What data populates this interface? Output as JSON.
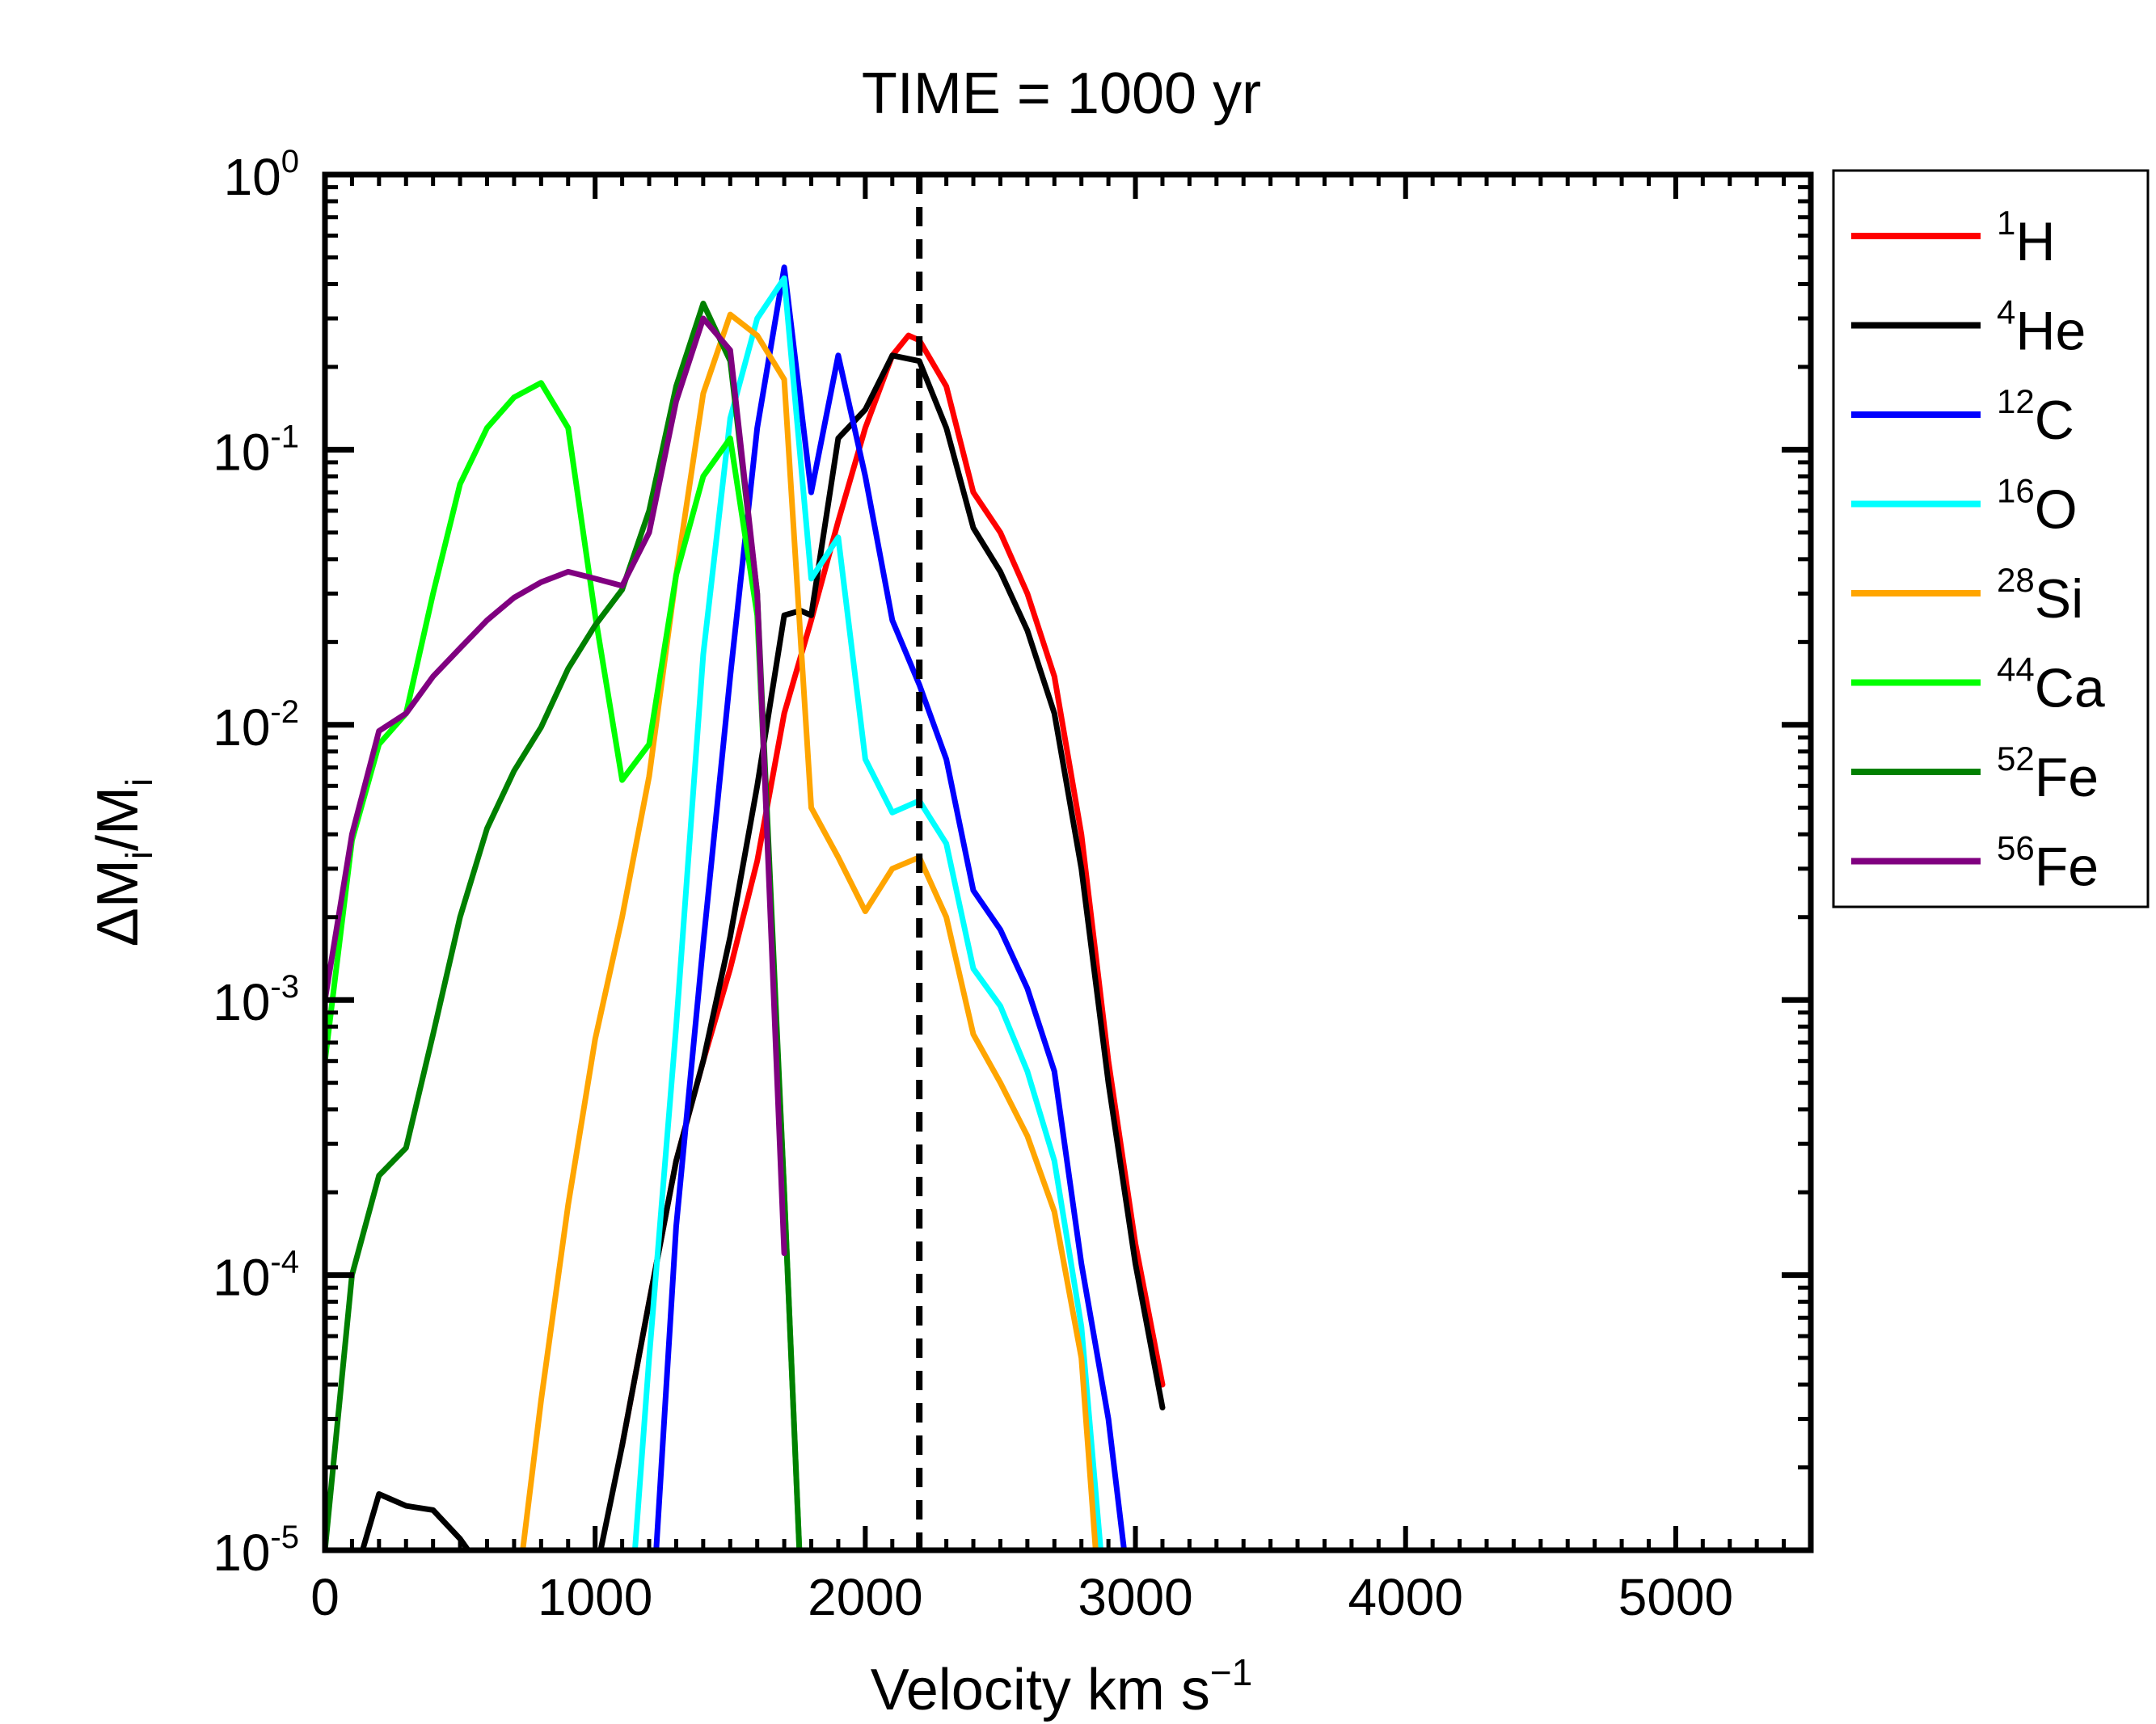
{
  "chart_data": {
    "type": "line",
    "title": "TIME = 1000 yr",
    "xlabel": "Velocity km s",
    "xlabel_exponent": "−1",
    "ylabel": "ΔM",
    "ylabel_sub": "i",
    "ylabel_sep": "/M",
    "ylabel_sub2": "i",
    "xlim": [
      0,
      5500
    ],
    "ylim_log10": [
      -5,
      0
    ],
    "x_ticks": [
      {
        "value": 0,
        "label": "0"
      },
      {
        "value": 1000,
        "label": "1000"
      },
      {
        "value": 2000,
        "label": "2000"
      },
      {
        "value": 3000,
        "label": "3000"
      },
      {
        "value": 4000,
        "label": "4000"
      },
      {
        "value": 5000,
        "label": "5000"
      }
    ],
    "y_ticks": [
      {
        "exp": 0,
        "base": "10",
        "sup": "0"
      },
      {
        "exp": -1,
        "base": "10",
        "sup": "-1"
      },
      {
        "exp": -2,
        "base": "10",
        "sup": "-2"
      },
      {
        "exp": -3,
        "base": "10",
        "sup": "-3"
      },
      {
        "exp": -4,
        "base": "10",
        "sup": "-4"
      },
      {
        "exp": -5,
        "base": "10",
        "sup": "-5"
      }
    ],
    "reference_line": {
      "x": 2200,
      "style": "dashed",
      "color": "#000000"
    },
    "legend_position": "right",
    "series": [
      {
        "name": "H",
        "mass_number": "1",
        "color": "#ff0000",
        "points": [
          [
            1100,
            2.4e-05
          ],
          [
            1200,
            8e-05
          ],
          [
            1300,
            0.00026
          ],
          [
            1400,
            0.0006
          ],
          [
            1500,
            0.0013
          ],
          [
            1600,
            0.0032
          ],
          [
            1700,
            0.011
          ],
          [
            1800,
            0.024
          ],
          [
            1900,
            0.055
          ],
          [
            2000,
            0.12
          ],
          [
            2100,
            0.22
          ],
          [
            2160,
            0.26
          ],
          [
            2200,
            0.25
          ],
          [
            2300,
            0.17
          ],
          [
            2400,
            0.07
          ],
          [
            2500,
            0.05
          ],
          [
            2600,
            0.03
          ],
          [
            2700,
            0.015
          ],
          [
            2800,
            0.004
          ],
          [
            2900,
            0.0006
          ],
          [
            3000,
            0.00013
          ],
          [
            3100,
            4e-05
          ]
        ]
      },
      {
        "name": "He",
        "mass_number": "4",
        "color": "#000000",
        "points": [
          [
            110,
            8e-06
          ],
          [
            200,
            1.6e-05
          ],
          [
            300,
            1.45e-05
          ],
          [
            400,
            1.4e-05
          ],
          [
            500,
            1.1e-05
          ],
          [
            600,
            8e-06
          ],
          [
            1000,
            8e-06
          ],
          [
            1100,
            2.4e-05
          ],
          [
            1200,
            8e-05
          ],
          [
            1300,
            0.00026
          ],
          [
            1400,
            0.0006
          ],
          [
            1500,
            0.0017
          ],
          [
            1600,
            0.006
          ],
          [
            1700,
            0.025
          ],
          [
            1760,
            0.026
          ],
          [
            1800,
            0.025
          ],
          [
            1900,
            0.11
          ],
          [
            2000,
            0.14
          ],
          [
            2100,
            0.22
          ],
          [
            2200,
            0.21
          ],
          [
            2300,
            0.12
          ],
          [
            2400,
            0.052
          ],
          [
            2500,
            0.036
          ],
          [
            2600,
            0.022
          ],
          [
            2700,
            0.011
          ],
          [
            2800,
            0.003
          ],
          [
            2900,
            0.0005
          ],
          [
            3000,
            0.00011
          ],
          [
            3100,
            3.3e-05
          ]
        ]
      },
      {
        "name": "C",
        "mass_number": "12",
        "color": "#0000ff",
        "points": [
          [
            1220,
            8e-06
          ],
          [
            1300,
            0.00015
          ],
          [
            1400,
            0.0016
          ],
          [
            1500,
            0.015
          ],
          [
            1600,
            0.12
          ],
          [
            1700,
            0.46
          ],
          [
            1800,
            0.07
          ],
          [
            1900,
            0.22
          ],
          [
            2000,
            0.08
          ],
          [
            2100,
            0.024
          ],
          [
            2200,
            0.014
          ],
          [
            2300,
            0.0075
          ],
          [
            2400,
            0.0025
          ],
          [
            2500,
            0.0018
          ],
          [
            2600,
            0.0011
          ],
          [
            2700,
            0.00055
          ],
          [
            2800,
            0.00011
          ],
          [
            2900,
            3e-05
          ],
          [
            2970,
            8e-06
          ]
        ]
      },
      {
        "name": "O",
        "mass_number": "16",
        "color": "#00ffff",
        "points": [
          [
            1140,
            8e-06
          ],
          [
            1200,
            5e-05
          ],
          [
            1300,
            0.0008
          ],
          [
            1400,
            0.018
          ],
          [
            1500,
            0.13
          ],
          [
            1600,
            0.3
          ],
          [
            1700,
            0.42
          ],
          [
            1800,
            0.034
          ],
          [
            1900,
            0.048
          ],
          [
            2000,
            0.0075
          ],
          [
            2100,
            0.0048
          ],
          [
            2200,
            0.0053
          ],
          [
            2300,
            0.0037
          ],
          [
            2400,
            0.0013
          ],
          [
            2500,
            0.00095
          ],
          [
            2600,
            0.00055
          ],
          [
            2700,
            0.00026
          ],
          [
            2800,
            6.5e-05
          ],
          [
            2880,
            8e-06
          ]
        ]
      },
      {
        "name": "Si",
        "mass_number": "28",
        "color": "#ffa500",
        "points": [
          [
            720,
            8e-06
          ],
          [
            800,
            3.5e-05
          ],
          [
            900,
            0.00018
          ],
          [
            1000,
            0.00072
          ],
          [
            1100,
            0.002
          ],
          [
            1200,
            0.0065
          ],
          [
            1300,
            0.035
          ],
          [
            1400,
            0.16
          ],
          [
            1500,
            0.31
          ],
          [
            1600,
            0.26
          ],
          [
            1700,
            0.18
          ],
          [
            1800,
            0.005
          ],
          [
            1900,
            0.0033
          ],
          [
            2000,
            0.0021
          ],
          [
            2100,
            0.003
          ],
          [
            2200,
            0.0033
          ],
          [
            2300,
            0.002
          ],
          [
            2400,
            0.00075
          ],
          [
            2500,
            0.0005
          ],
          [
            2600,
            0.00032
          ],
          [
            2700,
            0.00017
          ],
          [
            2800,
            5e-05
          ],
          [
            2860,
            8e-06
          ]
        ]
      },
      {
        "name": "Ca",
        "mass_number": "44",
        "color": "#00ff00",
        "points": [
          [
            0,
            0.0006
          ],
          [
            100,
            0.0038
          ],
          [
            200,
            0.0085
          ],
          [
            300,
            0.011
          ],
          [
            400,
            0.03
          ],
          [
            500,
            0.075
          ],
          [
            600,
            0.12
          ],
          [
            700,
            0.155
          ],
          [
            800,
            0.175
          ],
          [
            900,
            0.12
          ],
          [
            1000,
            0.025
          ],
          [
            1100,
            0.0063
          ],
          [
            1200,
            0.0085
          ],
          [
            1300,
            0.035
          ],
          [
            1400,
            0.08
          ],
          [
            1500,
            0.11
          ],
          [
            1600,
            0.025
          ],
          [
            1700,
            0.0002
          ],
          [
            1760,
            8e-06
          ]
        ]
      },
      {
        "name": "Fe",
        "mass_number": "52",
        "color": "#008000",
        "points": [
          [
            0,
            1e-05
          ],
          [
            100,
            0.0001
          ],
          [
            200,
            0.00023
          ],
          [
            300,
            0.00029
          ],
          [
            400,
            0.00075
          ],
          [
            500,
            0.002
          ],
          [
            600,
            0.0042
          ],
          [
            700,
            0.0068
          ],
          [
            800,
            0.0098
          ],
          [
            900,
            0.016
          ],
          [
            1000,
            0.023
          ],
          [
            1100,
            0.031
          ],
          [
            1200,
            0.06
          ],
          [
            1300,
            0.17
          ],
          [
            1400,
            0.34
          ],
          [
            1500,
            0.21
          ],
          [
            1600,
            0.03
          ],
          [
            1700,
            0.0002
          ],
          [
            1760,
            8e-06
          ]
        ]
      },
      {
        "name": "Fe",
        "mass_number": "56",
        "color": "#800080",
        "points": [
          [
            0,
            0.001
          ],
          [
            100,
            0.004
          ],
          [
            200,
            0.0095
          ],
          [
            300,
            0.011
          ],
          [
            400,
            0.015
          ],
          [
            500,
            0.019
          ],
          [
            600,
            0.024
          ],
          [
            700,
            0.029
          ],
          [
            800,
            0.033
          ],
          [
            900,
            0.036
          ],
          [
            1000,
            0.034
          ],
          [
            1100,
            0.032
          ],
          [
            1200,
            0.05
          ],
          [
            1300,
            0.15
          ],
          [
            1400,
            0.3
          ],
          [
            1500,
            0.23
          ],
          [
            1600,
            0.03
          ],
          [
            1700,
            0.00012
          ]
        ]
      }
    ]
  }
}
